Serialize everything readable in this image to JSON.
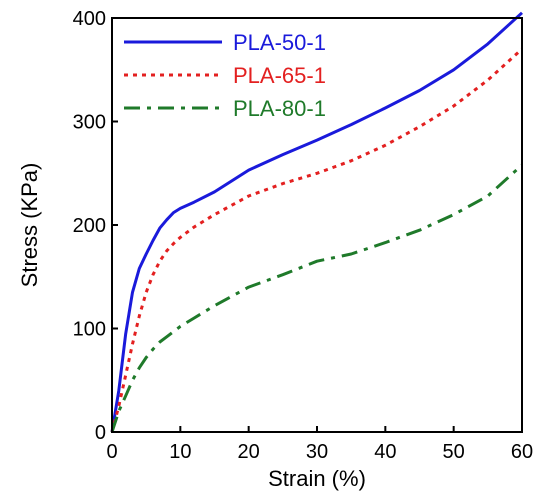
{
  "chart_data": {
    "type": "line",
    "title": "",
    "xlabel": "Strain (%)",
    "ylabel": "Stress (KPa)",
    "xlim": [
      0,
      60
    ],
    "ylim": [
      0,
      400
    ],
    "xticks": [
      0,
      10,
      20,
      30,
      40,
      50,
      60
    ],
    "yticks": [
      0,
      100,
      200,
      300,
      400
    ],
    "grid": false,
    "legend_position": "top-left",
    "series": [
      {
        "name": "PLA-50-1",
        "color": "#1a1adb",
        "style": "solid",
        "x": [
          0,
          1,
          2,
          3,
          4,
          5,
          6,
          7,
          8,
          9,
          10,
          12,
          15,
          20,
          25,
          30,
          35,
          40,
          45,
          50,
          55,
          60
        ],
        "y": [
          0,
          40,
          95,
          135,
          158,
          172,
          185,
          197,
          205,
          212,
          216,
          222,
          232,
          253,
          268,
          282,
          297,
          313,
          330,
          350,
          375,
          405
        ]
      },
      {
        "name": "PLA-65-1",
        "color": "#e32020",
        "style": "dotted",
        "x": [
          0,
          1,
          2,
          3,
          4,
          5,
          6,
          7,
          8,
          9,
          10,
          12,
          15,
          20,
          25,
          30,
          35,
          40,
          45,
          50,
          55,
          60
        ],
        "y": [
          0,
          25,
          55,
          85,
          112,
          135,
          152,
          165,
          175,
          182,
          188,
          198,
          210,
          228,
          240,
          250,
          262,
          277,
          295,
          315,
          340,
          370
        ]
      },
      {
        "name": "PLA-80-1",
        "color": "#1f7a2a",
        "style": "dashdot",
        "x": [
          0,
          1,
          2,
          3,
          4,
          5,
          6,
          7,
          8,
          10,
          12,
          15,
          20,
          25,
          30,
          35,
          40,
          45,
          50,
          55,
          60
        ],
        "y": [
          0,
          20,
          35,
          50,
          62,
          72,
          80,
          87,
          92,
          102,
          110,
          122,
          140,
          152,
          165,
          172,
          183,
          195,
          210,
          228,
          258
        ]
      }
    ]
  }
}
